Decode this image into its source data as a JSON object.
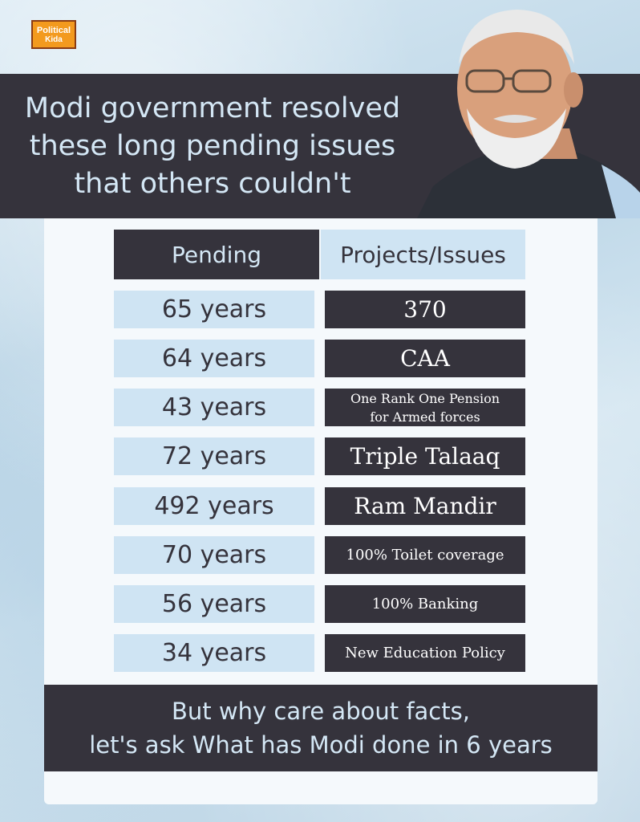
{
  "logo": {
    "line1": "Political",
    "line2": "Kida"
  },
  "headline": {
    "line1": "Modi government resolved",
    "line2": "these long pending issues",
    "line3": "that others couldn't"
  },
  "table": {
    "headers": {
      "pending": "Pending",
      "projects": "Projects/Issues"
    },
    "rows": [
      {
        "years": "65 years",
        "issue": "370"
      },
      {
        "years": "64 years",
        "issue": "CAA"
      },
      {
        "years": "43 years",
        "issue_line1": "One Rank One Pension",
        "issue_line2": "for Armed forces"
      },
      {
        "years": "72 years",
        "issue": "Triple Talaaq"
      },
      {
        "years": "492 years",
        "issue": "Ram Mandir"
      },
      {
        "years": "70 years",
        "issue": "100% Toilet coverage"
      },
      {
        "years": "56 years",
        "issue": "100% Banking"
      },
      {
        "years": "34 years",
        "issue": "New Education Policy"
      }
    ]
  },
  "footer": {
    "line1": "But why care about facts,",
    "line2": "let's ask What has Modi done in 6 years"
  }
}
